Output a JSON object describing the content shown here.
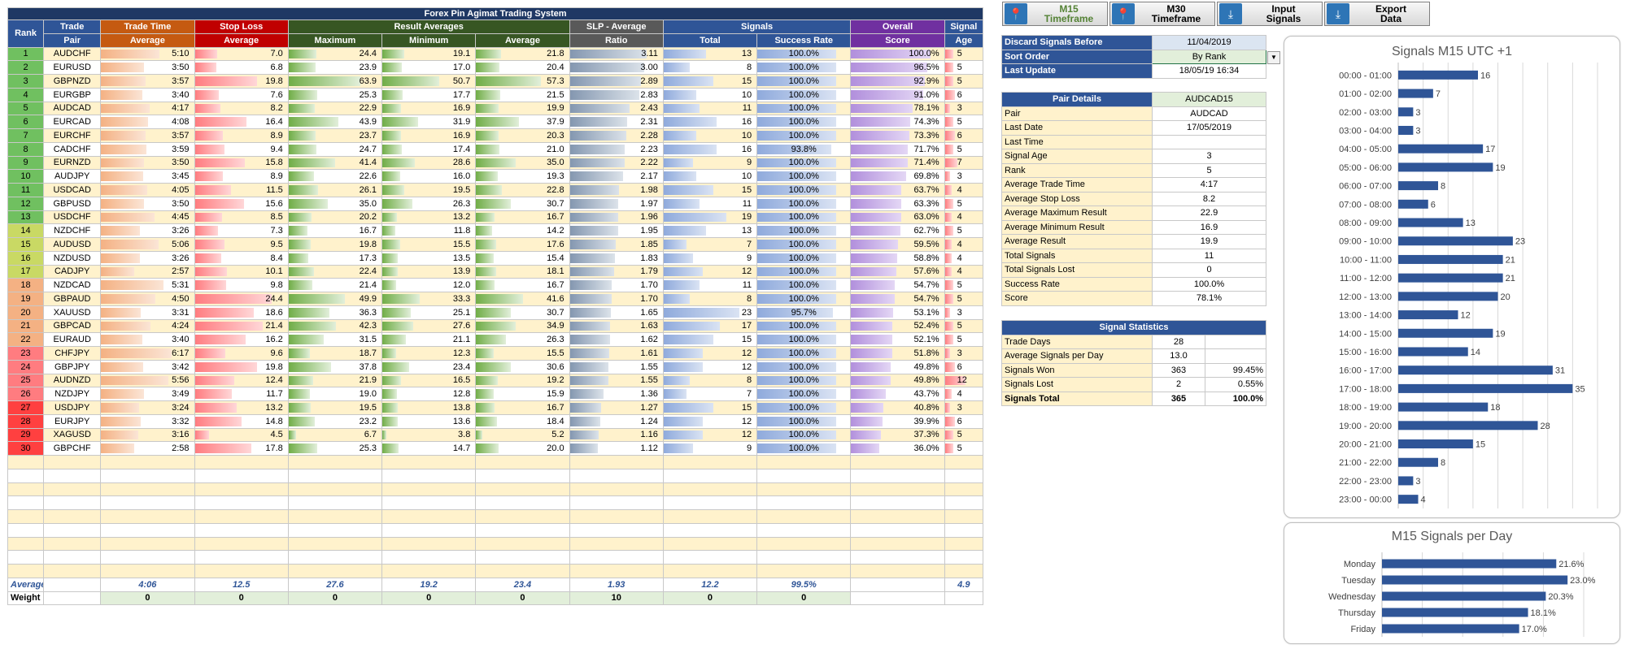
{
  "app": {
    "title": "Forex Pin Agimat Trading System"
  },
  "headers": {
    "rank": "Rank",
    "trade_pair": "Trade\nPair",
    "trade_time": "Trade Time",
    "trade_time_sub": "Average",
    "stop_loss": "Stop Loss",
    "stop_loss_sub": "Average",
    "result_avg": "Result Averages",
    "maximum": "Maximum",
    "minimum": "Minimum",
    "average": "Average",
    "slp": "SLP - Average",
    "slp_sub": "Ratio",
    "signals": "Signals",
    "total": "Total",
    "success_rate": "Success Rate",
    "overall": "Overall",
    "overall_sub": "Score",
    "signal": "Signal",
    "signal_sub": "Age"
  },
  "rows": [
    {
      "rank": "1",
      "pair": "AUDCHF",
      "time": "5:10",
      "sl": "7.0",
      "max": "24.4",
      "min": "19.1",
      "avg": "21.8",
      "slp": "3.11",
      "total": "13",
      "sr": "100.0%",
      "score": "100.0%",
      "age": "5"
    },
    {
      "rank": "2",
      "pair": "EURUSD",
      "time": "3:50",
      "sl": "6.8",
      "max": "23.9",
      "min": "17.0",
      "avg": "20.4",
      "slp": "3.00",
      "total": "8",
      "sr": "100.0%",
      "score": "96.5%",
      "age": "5"
    },
    {
      "rank": "3",
      "pair": "GBPNZD",
      "time": "3:57",
      "sl": "19.8",
      "max": "63.9",
      "min": "50.7",
      "avg": "57.3",
      "slp": "2.89",
      "total": "15",
      "sr": "100.0%",
      "score": "92.9%",
      "age": "5"
    },
    {
      "rank": "4",
      "pair": "EURGBP",
      "time": "3:40",
      "sl": "7.6",
      "max": "25.3",
      "min": "17.7",
      "avg": "21.5",
      "slp": "2.83",
      "total": "10",
      "sr": "100.0%",
      "score": "91.0%",
      "age": "6"
    },
    {
      "rank": "5",
      "pair": "AUDCAD",
      "time": "4:17",
      "sl": "8.2",
      "max": "22.9",
      "min": "16.9",
      "avg": "19.9",
      "slp": "2.43",
      "total": "11",
      "sr": "100.0%",
      "score": "78.1%",
      "age": "3"
    },
    {
      "rank": "6",
      "pair": "EURCAD",
      "time": "4:08",
      "sl": "16.4",
      "max": "43.9",
      "min": "31.9",
      "avg": "37.9",
      "slp": "2.31",
      "total": "16",
      "sr": "100.0%",
      "score": "74.3%",
      "age": "5"
    },
    {
      "rank": "7",
      "pair": "EURCHF",
      "time": "3:57",
      "sl": "8.9",
      "max": "23.7",
      "min": "16.9",
      "avg": "20.3",
      "slp": "2.28",
      "total": "10",
      "sr": "100.0%",
      "score": "73.3%",
      "age": "6"
    },
    {
      "rank": "8",
      "pair": "CADCHF",
      "time": "3:59",
      "sl": "9.4",
      "max": "24.7",
      "min": "17.4",
      "avg": "21.0",
      "slp": "2.23",
      "total": "16",
      "sr": "93.8%",
      "score": "71.7%",
      "age": "5"
    },
    {
      "rank": "9",
      "pair": "EURNZD",
      "time": "3:50",
      "sl": "15.8",
      "max": "41.4",
      "min": "28.6",
      "avg": "35.0",
      "slp": "2.22",
      "total": "9",
      "sr": "100.0%",
      "score": "71.4%",
      "age": "7"
    },
    {
      "rank": "10",
      "pair": "AUDJPY",
      "time": "3:45",
      "sl": "8.9",
      "max": "22.6",
      "min": "16.0",
      "avg": "19.3",
      "slp": "2.17",
      "total": "10",
      "sr": "100.0%",
      "score": "69.8%",
      "age": "3"
    },
    {
      "rank": "11",
      "pair": "USDCAD",
      "time": "4:05",
      "sl": "11.5",
      "max": "26.1",
      "min": "19.5",
      "avg": "22.8",
      "slp": "1.98",
      "total": "15",
      "sr": "100.0%",
      "score": "63.7%",
      "age": "4"
    },
    {
      "rank": "12",
      "pair": "GBPUSD",
      "time": "3:50",
      "sl": "15.6",
      "max": "35.0",
      "min": "26.3",
      "avg": "30.7",
      "slp": "1.97",
      "total": "11",
      "sr": "100.0%",
      "score": "63.3%",
      "age": "5"
    },
    {
      "rank": "13",
      "pair": "USDCHF",
      "time": "4:45",
      "sl": "8.5",
      "max": "20.2",
      "min": "13.2",
      "avg": "16.7",
      "slp": "1.96",
      "total": "19",
      "sr": "100.0%",
      "score": "63.0%",
      "age": "4"
    },
    {
      "rank": "14",
      "pair": "NZDCHF",
      "time": "3:26",
      "sl": "7.3",
      "max": "16.7",
      "min": "11.8",
      "avg": "14.2",
      "slp": "1.95",
      "total": "13",
      "sr": "100.0%",
      "score": "62.7%",
      "age": "5"
    },
    {
      "rank": "15",
      "pair": "AUDUSD",
      "time": "5:06",
      "sl": "9.5",
      "max": "19.8",
      "min": "15.5",
      "avg": "17.6",
      "slp": "1.85",
      "total": "7",
      "sr": "100.0%",
      "score": "59.5%",
      "age": "4"
    },
    {
      "rank": "16",
      "pair": "NZDUSD",
      "time": "3:26",
      "sl": "8.4",
      "max": "17.3",
      "min": "13.5",
      "avg": "15.4",
      "slp": "1.83",
      "total": "9",
      "sr": "100.0%",
      "score": "58.8%",
      "age": "4"
    },
    {
      "rank": "17",
      "pair": "CADJPY",
      "time": "2:57",
      "sl": "10.1",
      "max": "22.4",
      "min": "13.9",
      "avg": "18.1",
      "slp": "1.79",
      "total": "12",
      "sr": "100.0%",
      "score": "57.6%",
      "age": "4"
    },
    {
      "rank": "18",
      "pair": "NZDCAD",
      "time": "5:31",
      "sl": "9.8",
      "max": "21.4",
      "min": "12.0",
      "avg": "16.7",
      "slp": "1.70",
      "total": "11",
      "sr": "100.0%",
      "score": "54.7%",
      "age": "5"
    },
    {
      "rank": "19",
      "pair": "GBPAUD",
      "time": "4:50",
      "sl": "24.4",
      "max": "49.9",
      "min": "33.3",
      "avg": "41.6",
      "slp": "1.70",
      "total": "8",
      "sr": "100.0%",
      "score": "54.7%",
      "age": "5"
    },
    {
      "rank": "20",
      "pair": "XAUUSD",
      "time": "3:31",
      "sl": "18.6",
      "max": "36.3",
      "min": "25.1",
      "avg": "30.7",
      "slp": "1.65",
      "total": "23",
      "sr": "95.7%",
      "score": "53.1%",
      "age": "3"
    },
    {
      "rank": "21",
      "pair": "GBPCAD",
      "time": "4:24",
      "sl": "21.4",
      "max": "42.3",
      "min": "27.6",
      "avg": "34.9",
      "slp": "1.63",
      "total": "17",
      "sr": "100.0%",
      "score": "52.4%",
      "age": "5"
    },
    {
      "rank": "22",
      "pair": "EURAUD",
      "time": "3:40",
      "sl": "16.2",
      "max": "31.5",
      "min": "21.1",
      "avg": "26.3",
      "slp": "1.62",
      "total": "15",
      "sr": "100.0%",
      "score": "52.1%",
      "age": "5"
    },
    {
      "rank": "23",
      "pair": "CHFJPY",
      "time": "6:17",
      "sl": "9.6",
      "max": "18.7",
      "min": "12.3",
      "avg": "15.5",
      "slp": "1.61",
      "total": "12",
      "sr": "100.0%",
      "score": "51.8%",
      "age": "3"
    },
    {
      "rank": "24",
      "pair": "GBPJPY",
      "time": "3:42",
      "sl": "19.8",
      "max": "37.8",
      "min": "23.4",
      "avg": "30.6",
      "slp": "1.55",
      "total": "12",
      "sr": "100.0%",
      "score": "49.8%",
      "age": "6"
    },
    {
      "rank": "25",
      "pair": "AUDNZD",
      "time": "5:56",
      "sl": "12.4",
      "max": "21.9",
      "min": "16.5",
      "avg": "19.2",
      "slp": "1.55",
      "total": "8",
      "sr": "100.0%",
      "score": "49.8%",
      "age": "12"
    },
    {
      "rank": "26",
      "pair": "NZDJPY",
      "time": "3:49",
      "sl": "11.7",
      "max": "19.0",
      "min": "12.8",
      "avg": "15.9",
      "slp": "1.36",
      "total": "7",
      "sr": "100.0%",
      "score": "43.7%",
      "age": "4"
    },
    {
      "rank": "27",
      "pair": "USDJPY",
      "time": "3:24",
      "sl": "13.2",
      "max": "19.5",
      "min": "13.8",
      "avg": "16.7",
      "slp": "1.27",
      "total": "15",
      "sr": "100.0%",
      "score": "40.8%",
      "age": "3"
    },
    {
      "rank": "28",
      "pair": "EURJPY",
      "time": "3:32",
      "sl": "14.8",
      "max": "23.2",
      "min": "13.6",
      "avg": "18.4",
      "slp": "1.24",
      "total": "12",
      "sr": "100.0%",
      "score": "39.9%",
      "age": "6"
    },
    {
      "rank": "29",
      "pair": "XAGUSD",
      "time": "3:16",
      "sl": "4.5",
      "max": "6.7",
      "min": "3.8",
      "avg": "5.2",
      "slp": "1.16",
      "total": "12",
      "sr": "100.0%",
      "score": "37.3%",
      "age": "5"
    },
    {
      "rank": "30",
      "pair": "GBPCHF",
      "time": "2:58",
      "sl": "17.8",
      "max": "25.3",
      "min": "14.7",
      "avg": "20.0",
      "slp": "1.12",
      "total": "9",
      "sr": "100.0%",
      "score": "36.0%",
      "age": "5"
    }
  ],
  "footer": {
    "avg_label": "Average",
    "avg": {
      "time": "4:06",
      "sl": "12.5",
      "max": "27.6",
      "min": "19.2",
      "avg": "23.4",
      "slp": "1.93",
      "total": "12.2",
      "sr": "99.5%",
      "age": "4.9"
    },
    "weight_label": "Weight",
    "weight": {
      "time": "0",
      "sl": "0",
      "max": "0",
      "min": "0",
      "avg": "0",
      "slp": "10",
      "total": "0",
      "sr": "0"
    }
  },
  "buttons": {
    "m15": "M15\nTimeframe",
    "m30": "M30\nTimeframe",
    "input": "Input\nSignals",
    "export": "Export\nData"
  },
  "settings": {
    "discard_label": "Discard Signals Before",
    "discard_value": "11/04/2019",
    "sort_label": "Sort Order",
    "sort_value": "By Rank",
    "update_label": "Last Update",
    "update_value": "18/05/19 16:34"
  },
  "pair_details": {
    "title": "Pair Details",
    "value": "AUDCAD15",
    "items": [
      {
        "k": "Pair",
        "v": "AUDCAD"
      },
      {
        "k": "Last Date",
        "v": "17/05/2019"
      },
      {
        "k": "Last Time",
        "v": ""
      },
      {
        "k": "Signal Age",
        "v": "3"
      },
      {
        "k": "Rank",
        "v": "5"
      },
      {
        "k": "Average Trade Time",
        "v": "4:17"
      },
      {
        "k": "Average Stop Loss",
        "v": "8.2"
      },
      {
        "k": "Average Maximum Result",
        "v": "22.9"
      },
      {
        "k": "Average Minimum Result",
        "v": "16.9"
      },
      {
        "k": "Average Result",
        "v": "19.9"
      },
      {
        "k": "Total Signals",
        "v": "11"
      },
      {
        "k": "Total Signals Lost",
        "v": "0"
      },
      {
        "k": "Success Rate",
        "v": "100.0%"
      },
      {
        "k": "Score",
        "v": "78.1%"
      }
    ]
  },
  "signal_stats": {
    "title": "Signal Statistics",
    "items": [
      {
        "k": "Trade Days",
        "v": "28",
        "p": ""
      },
      {
        "k": "Average Signals per Day",
        "v": "13.0",
        "p": ""
      },
      {
        "k": "Signals Won",
        "v": "363",
        "p": "99.45%"
      },
      {
        "k": "Signals Lost",
        "v": "2",
        "p": "0.55%"
      },
      {
        "k": "Signals Total",
        "v": "365",
        "p": "100.0%"
      }
    ]
  },
  "colors": {
    "rank_green": "#70ad47",
    "rank_red": "#ff0000",
    "trade_time_hdr": "#c55a11",
    "stop_loss_hdr": "#c00000",
    "result_hdr": "#375623",
    "slp_hdr": "#595959",
    "signals_hdr": "#2f5597",
    "overall_hdr": "#7030a0",
    "age_hdr": "#2f5597",
    "bar_blue": "#2f5597"
  },
  "chart_data": [
    {
      "type": "bar",
      "orientation": "horizontal",
      "title": "Signals M15 UTC +1",
      "categories": [
        "00:00 - 01:00",
        "01:00 - 02:00",
        "02:00 - 03:00",
        "03:00 - 04:00",
        "04:00 - 05:00",
        "05:00 - 06:00",
        "06:00 - 07:00",
        "07:00 - 08:00",
        "08:00 - 09:00",
        "09:00 - 10:00",
        "10:00 - 11:00",
        "11:00 - 12:00",
        "12:00 - 13:00",
        "13:00 - 14:00",
        "14:00 - 15:00",
        "15:00 - 16:00",
        "16:00 - 17:00",
        "17:00 - 18:00",
        "18:00 - 19:00",
        "19:00 - 20:00",
        "20:00 - 21:00",
        "21:00 - 22:00",
        "22:00 - 23:00",
        "23:00 - 00:00"
      ],
      "values": [
        16,
        7,
        3,
        3,
        17,
        19,
        8,
        6,
        13,
        23,
        21,
        21,
        20,
        12,
        19,
        14,
        31,
        35,
        18,
        28,
        15,
        8,
        3,
        4
      ],
      "xlim": [
        0,
        40
      ],
      "grid": true
    },
    {
      "type": "bar",
      "orientation": "horizontal",
      "title": "M15 Signals per Day",
      "categories": [
        "Monday",
        "Tuesday",
        "Wednesday",
        "Thursday",
        "Friday"
      ],
      "values": [
        21.6,
        23.0,
        20.3,
        18.1,
        17.0
      ],
      "value_labels": [
        "21.6%",
        "23.0%",
        "20.3%",
        "18.1%",
        "17.0%"
      ],
      "xlim": [
        0,
        25
      ],
      "grid": true
    }
  ]
}
